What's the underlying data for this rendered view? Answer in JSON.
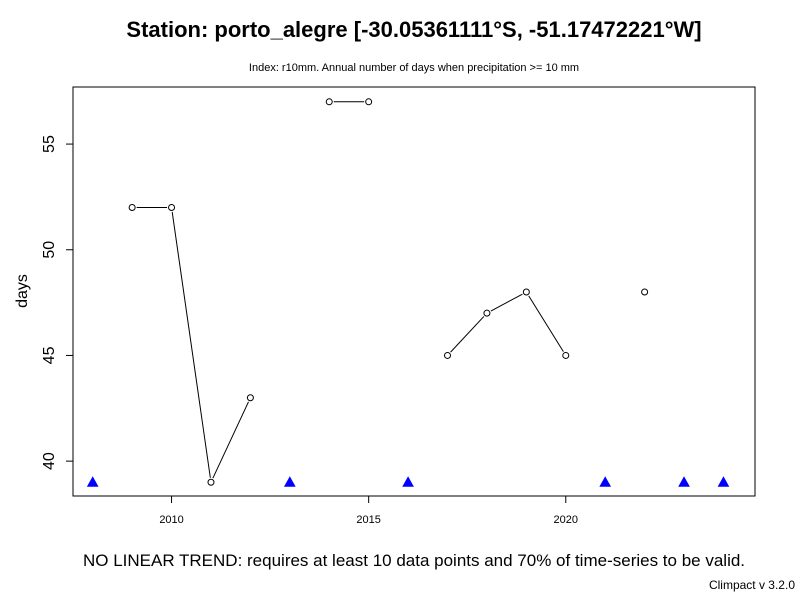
{
  "chart_data": {
    "type": "line",
    "title": "Station: porto_alegre [-30.05361111°S, -51.17472221°W]",
    "subtitle": "Index: r10mm. Annual number of days when precipitation >= 10 mm",
    "xlabel": "",
    "ylabel": "days",
    "xlim": [
      2007.5,
      2024.8
    ],
    "ylim": [
      38.35,
      57.7
    ],
    "x_ticks": [
      2010,
      2015,
      2020
    ],
    "x_tick_labels": [
      "2010",
      "2015",
      "2020"
    ],
    "y_ticks": [
      40,
      45,
      50,
      55
    ],
    "y_tick_labels": [
      "40",
      "45",
      "50",
      "55"
    ],
    "grid": false,
    "legend": "none",
    "series": [
      {
        "x": [
          2009,
          2010,
          2011,
          2012,
          2014,
          2015,
          2017,
          2018,
          2019,
          2020,
          2022
        ],
        "values": [
          52,
          52,
          39,
          43,
          57,
          57,
          45,
          47,
          48,
          45,
          48
        ],
        "segments": [
          [
            2009,
            2010,
            2011,
            2012
          ],
          [
            2014,
            2015
          ],
          [
            2017,
            2018,
            2019,
            2020
          ],
          [
            2022
          ]
        ]
      }
    ],
    "missing_years": [
      2008,
      2013,
      2016,
      2021,
      2023,
      2024
    ],
    "missing_marker_y": 39,
    "marker_color": "#000000",
    "missing_marker_color": "#0000ff"
  },
  "footer": {
    "trend_note": "NO LINEAR TREND: requires at least 10 data points and 70% of time-series to be valid.",
    "credit": "Climpact v 3.2.0"
  }
}
